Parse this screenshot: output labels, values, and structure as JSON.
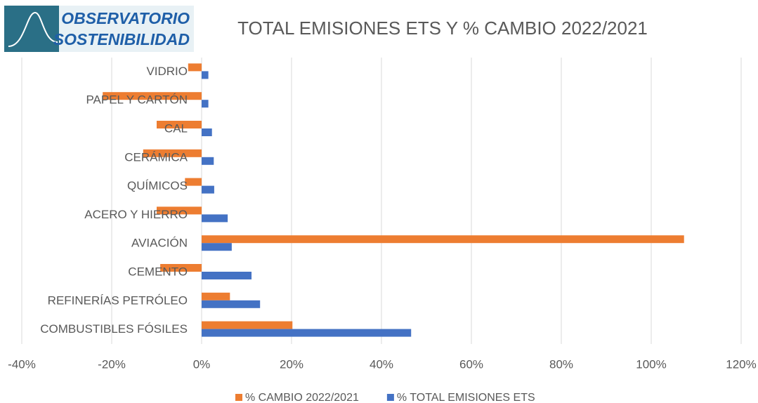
{
  "logo": {
    "line1": "OBSERVATORIO",
    "line2": "SOSTENIBILIDAD"
  },
  "chart_data": {
    "type": "hbar",
    "title": "TOTAL EMISIONES ETS Y % CAMBIO 2022/2021",
    "categories": [
      "VIDRIO",
      "PAPEL Y CARTÓN",
      "CAL",
      "CERÁMICA",
      "QUÍMICOS",
      "ACERO Y HIERRO",
      "AVIACIÓN",
      "CEMENTO",
      "REFINERÍAS PETRÓLEO",
      "COMBUSTIBLES FÓSILES"
    ],
    "series": [
      {
        "name": "% CAMBIO 2022/2021",
        "color": "#ed7d31",
        "values": [
          -3,
          -22,
          -10,
          -13,
          -3.7,
          -10,
          107.3,
          -9.2,
          6.3,
          20.2
        ]
      },
      {
        "name": "% TOTAL EMISIONES ETS",
        "color": "#4472c4",
        "values": [
          1.5,
          1.5,
          2.3,
          2.7,
          2.8,
          5.8,
          6.7,
          11.1,
          13,
          46.6
        ]
      }
    ],
    "xlim": [
      -40,
      120
    ],
    "xticks": [
      {
        "value": -40,
        "label": "-40%"
      },
      {
        "value": -20,
        "label": "-20%"
      },
      {
        "value": 0,
        "label": "0%"
      },
      {
        "value": 20,
        "label": "20%"
      },
      {
        "value": 40,
        "label": "40%"
      },
      {
        "value": 60,
        "label": "60%"
      },
      {
        "value": 80,
        "label": "80%"
      },
      {
        "value": 100,
        "label": "100%"
      },
      {
        "value": 120,
        "label": "120%"
      }
    ],
    "grid": true,
    "legend": "bottom"
  }
}
